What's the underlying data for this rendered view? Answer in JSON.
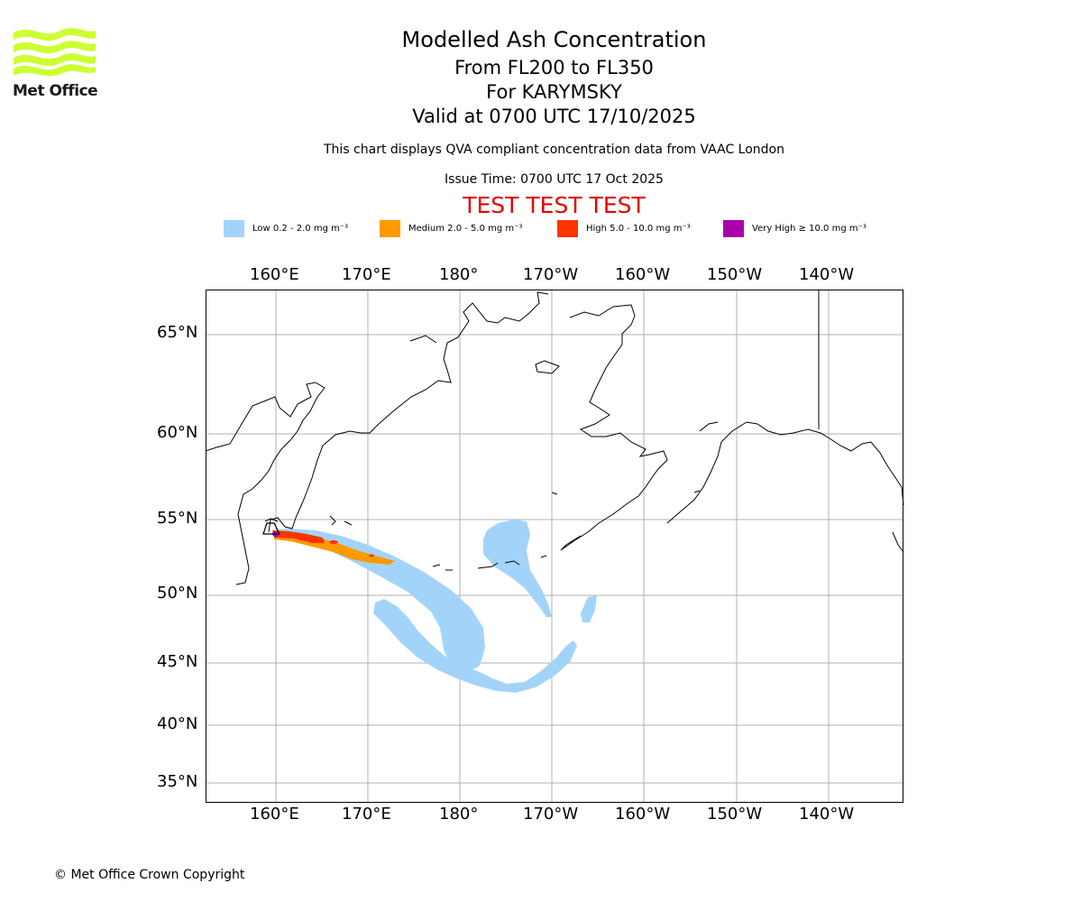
{
  "header": {
    "title": "Modelled Ash Concentration",
    "subtitle_levels": "From FL200 to FL350",
    "subtitle_volcano": "For KARYMSKY",
    "subtitle_valid": "Valid at 0700 UTC 17/10/2025",
    "qva_note": "This chart displays QVA compliant concentration data from VAAC London",
    "issue_time": "Issue Time: 0700 UTC 17 Oct 2025",
    "test_banner": "TEST TEST TEST"
  },
  "logo": {
    "text": "Met Office",
    "color": "#ccff33"
  },
  "legend": [
    {
      "label": "Low 0.2 - 2.0 mg m⁻³",
      "color": "#a2d4fa"
    },
    {
      "label": "Medium 2.0 - 5.0 mg m⁻³",
      "color": "#ff9900"
    },
    {
      "label": "High 5.0 - 10.0 mg m⁻³",
      "color": "#ff3300"
    },
    {
      "label": "Very High  ≥  10.0 mg m⁻³",
      "color": "#aa00aa"
    }
  ],
  "axes": {
    "lon_labels": [
      "160°E",
      "170°E",
      "180°",
      "170°W",
      "160°W",
      "150°W",
      "140°W"
    ],
    "lat_labels": [
      "65°N",
      "60°N",
      "55°N",
      "50°N",
      "45°N",
      "40°N",
      "35°N"
    ]
  },
  "footer": {
    "copyright": "© Met Office Crown Copyright"
  }
}
